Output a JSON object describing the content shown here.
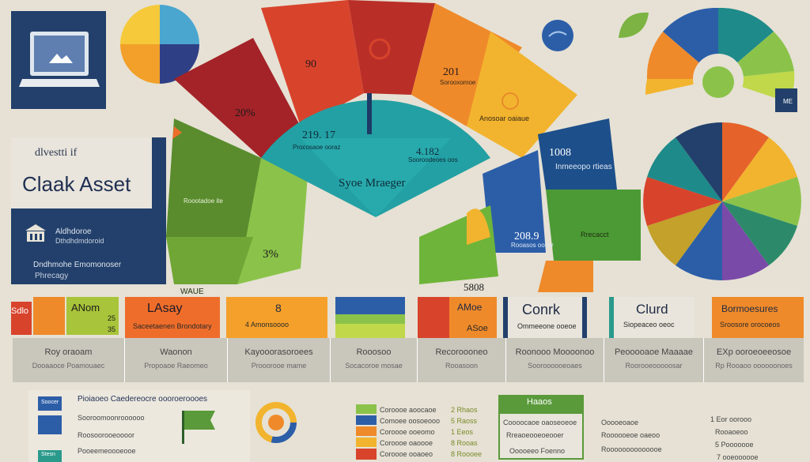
{
  "colors": {
    "background": "#e6e1d4",
    "navy": "#22406b",
    "red": "#c9332a",
    "orange": "#ef8a2a",
    "yellow": "#f2b42e",
    "green": "#7cb342",
    "teal": "#23a0a3",
    "blue": "#2c5ea8"
  },
  "left_panel": {
    "subtitle": "dlvestti if",
    "title": "Claak Asset",
    "info_line1": "Aldhdoroe",
    "info_line2": "Dthdhdmdoroid",
    "info_line3": "Dndhmohe Emomonoser",
    "info_line4": "Phrecagy"
  },
  "fan": {
    "seg_top_left": "20%",
    "seg_top_mid": "90",
    "seg_top_right": "201",
    "seg_top_right_sub": "Sorooxomoe",
    "seg_right_upper": "Anosoar oaiaue",
    "seg_left_mid": "Roootadoe ite",
    "seg_left_low": "3%",
    "seg_left_bottom": "WAUE",
    "seg_right_mid": "1008",
    "seg_right_mid_sub": "Inmeeopo rtieas",
    "seg_right_low": "208.9",
    "seg_right_low_sub": "Rooasos oocor",
    "seg_right_low2": "Rrecacct",
    "seg_bottom_right": "5808"
  },
  "teal_hub": {
    "value_left": "219. 17",
    "sub_left": "Procosaoe ooraz",
    "value_right": "4.182",
    "sub_right": "Sooroodeoes oos",
    "center": "Syoe Mraeger"
  },
  "cards": {
    "lasay_title": "LAsay",
    "lasay_sub": "Saceetaenen Brondotary",
    "orange2_num": "8",
    "orange2_sub": "4 Amonsoooo",
    "mixed_title": "AMoe",
    "mixed_sub": "ASoe",
    "conk_title": "Conrk",
    "conk_sub": "Ommeeone ooeoe",
    "clurd_title": "Clurd",
    "clurd_sub": "Siopeaceo oeoc",
    "bor_title": "Bormoesures",
    "bor_sub": "Sroosore orocoeos"
  },
  "small_tiles": {
    "t1": "Sdlo",
    "t2": "ANom",
    "t3": "25",
    "t4": "35"
  },
  "strip": [
    {
      "a": "Roy oraoam",
      "b": "Dooaaoce Poamouaec"
    },
    {
      "a": "Waonon",
      "b": "Propoaoe Raeomeo"
    },
    {
      "a": "Kayooorasoroees",
      "b": "Prooorooe mame"
    },
    {
      "a": "Rooosoo",
      "b": "Socacoroe mosae"
    },
    {
      "a": "Recoroooneo",
      "b": "Rooasoon"
    },
    {
      "a": "Roonooo Moooonoo",
      "b": "Sooroooooeoaes"
    },
    {
      "a": "Peooooaoe Maaaae",
      "b": "Roorooeooooosar"
    },
    {
      "a": "EXp ooroeoeeosoe",
      "b": "Rp Rooaoo oooooonoes"
    }
  ],
  "bottom": {
    "box1": "Soocer",
    "box2": "Stesn",
    "heading": "Pioiaoeo Caedereocre oooroeroooes",
    "lines": [
      "Sooroomoonroooooo",
      "Roosoorooeoooor",
      "Pooeemeoooeooe"
    ],
    "list_mid": [
      "Coroooe aoocaoe",
      "Comoee oosoeooo",
      "Coroooe ooeomo",
      "Coroooe oaoooe",
      "Coroooe ooaoeo"
    ],
    "list_mid_num": [
      "2 Rhaos",
      "5 Raoss",
      "1 Eeos",
      "8 Rooas",
      "8 Roooee"
    ],
    "green_box_title": "Haaos",
    "green_box_lines": [
      "Coooocaoe oaoseoeoe",
      "Rreaoeooeoeooer",
      "Ooooeeo Foenno"
    ],
    "right_list": [
      "Ooooeoaoe",
      "Roooooeoe oaeoo",
      "Roooooooooooooe"
    ],
    "right_list2": [
      "1 Eor oorooo",
      "Rooaoeoo",
      "5 Pooooooe",
      "7 ooeoooooe"
    ]
  }
}
